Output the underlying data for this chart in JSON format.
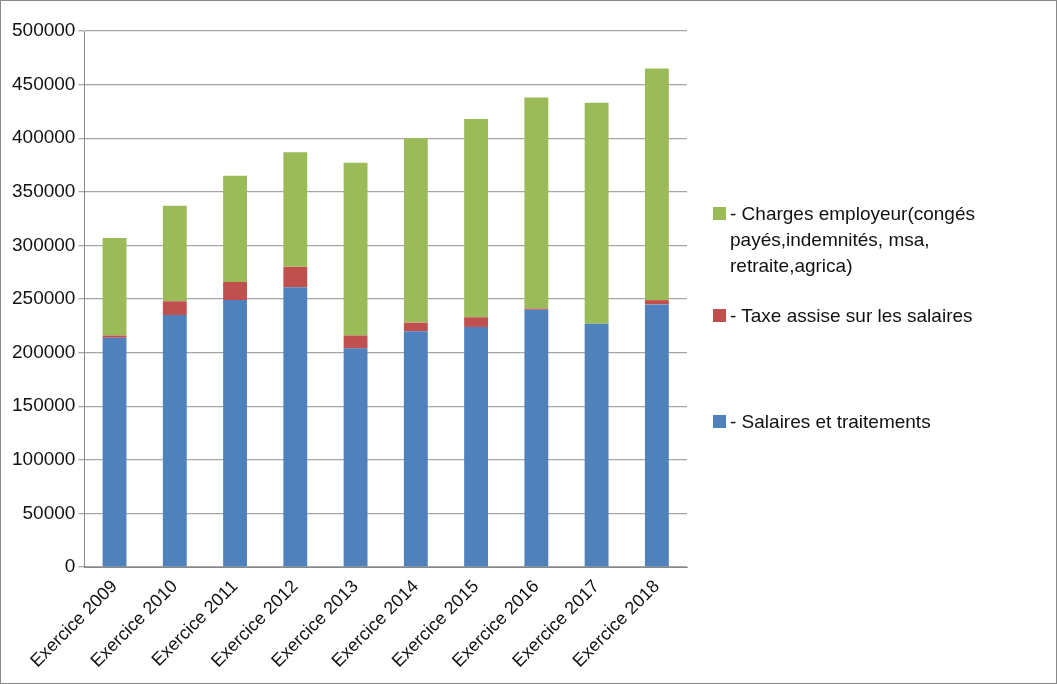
{
  "chart_data": {
    "type": "bar",
    "stacked": true,
    "categories": [
      "Exercice 2009",
      "Exercice 2010",
      "Exercice 2011",
      "Exercice 2012",
      "Exercice 2013",
      "Exercice 2014",
      "Exercice 2015",
      "Exercice 2016",
      "Exercice 2017",
      "Exercice 2018"
    ],
    "series": [
      {
        "name": " - Salaires et traitements",
        "color": "#4f81bd",
        "values": [
          214000,
          235000,
          249000,
          261000,
          204000,
          220000,
          224000,
          240000,
          227000,
          245000
        ]
      },
      {
        "name": " - Taxe assise sur les salaires",
        "color": "#c0504d",
        "values": [
          2000,
          13000,
          17000,
          19000,
          12000,
          8000,
          9000,
          1000,
          0,
          4000
        ]
      },
      {
        "name": " - Charges employeur(congés payés,indemnités, msa, retraite,agrica)",
        "color": "#9bbb59",
        "values": [
          91000,
          89000,
          99000,
          107000,
          161000,
          172000,
          185000,
          197000,
          206000,
          216000
        ]
      }
    ],
    "ylim": [
      0,
      500000
    ],
    "yticks": [
      0,
      50000,
      100000,
      150000,
      200000,
      250000,
      300000,
      350000,
      400000,
      450000,
      500000
    ],
    "grid": "y",
    "legend": "right"
  }
}
